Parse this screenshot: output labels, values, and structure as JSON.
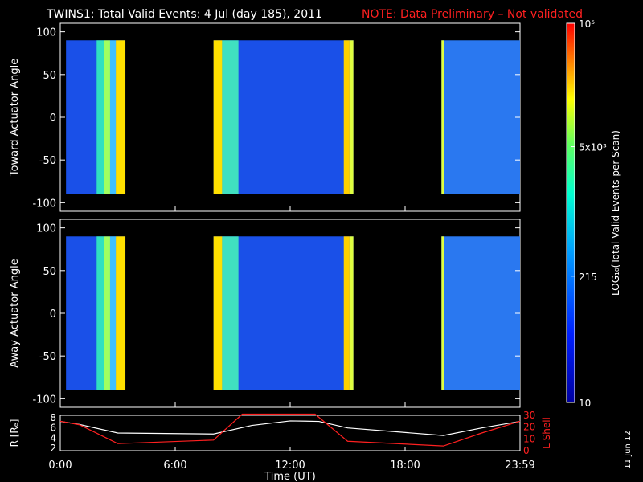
{
  "header": {
    "title": "TWINS1: Total Valid Events:  4 Jul (day 185), 2011",
    "note": "NOTE: Data Preliminary – Not validated",
    "note_color": "#ff2020"
  },
  "side_date": "11 Jun 12",
  "colorbar": {
    "title": "LOG₁₀(Total Valid Events per Scan)",
    "scale": "log",
    "range": [
      10,
      100000
    ],
    "ticks": [
      "10",
      "215",
      "5x10³",
      "10⁵"
    ]
  },
  "chart_data": [
    {
      "type": "heatmap",
      "ylabel": "Toward Actuator Angle",
      "ylim": [
        -110,
        110
      ],
      "yticks": [
        "100",
        "50",
        "0",
        "-50",
        "-100"
      ],
      "xlim_hours": [
        0,
        24
      ]
    },
    {
      "type": "heatmap",
      "ylabel": "Away Actuator Angle",
      "ylim": [
        -110,
        110
      ],
      "yticks": [
        "100",
        "50",
        "0",
        "-50",
        "-100"
      ],
      "xlim_hours": [
        0,
        24
      ]
    },
    {
      "type": "line",
      "ylabel_left": "R [Rₑ]",
      "ylabel_right": "L Shell",
      "yticks_left": [
        "8",
        "6",
        "4",
        "2"
      ],
      "yticks_right": [
        "30",
        "20",
        "10",
        "0"
      ],
      "ylim_left": [
        1.5,
        8.5
      ],
      "ylim_right": [
        0,
        30
      ],
      "xticks": [
        "0:00",
        "6:00",
        "12:00",
        "18:00",
        "23:59"
      ],
      "xlabel": "Time (UT)",
      "series": [
        {
          "color": "#ffffff",
          "x": [
            0,
            1,
            3,
            8,
            10,
            12,
            13.5,
            15,
            20,
            22,
            24
          ],
          "y": [
            7.3,
            6.7,
            5.0,
            4.8,
            6.5,
            7.4,
            7.3,
            6.0,
            4.5,
            6.0,
            7.3
          ]
        },
        {
          "color": "#ff2020",
          "x": [
            0,
            1,
            3,
            8,
            9.5,
            13.3,
            15,
            20,
            22,
            24
          ],
          "y": [
            25,
            22,
            6,
            9,
            31,
            31,
            8,
            4,
            15,
            25
          ]
        }
      ]
    }
  ]
}
